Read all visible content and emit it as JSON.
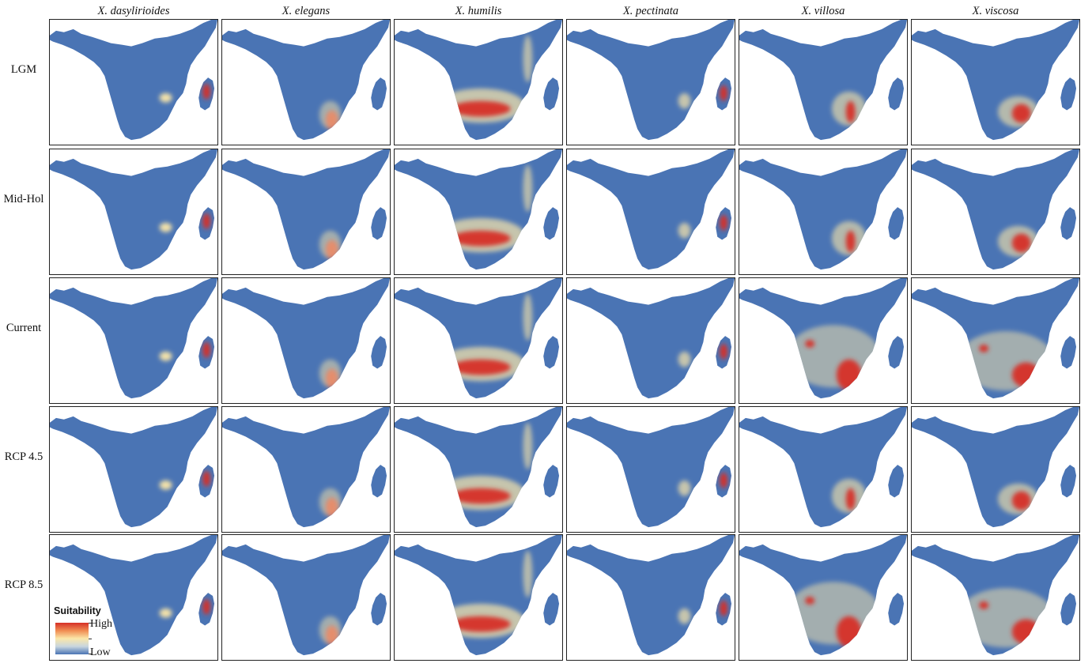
{
  "species": [
    "X. dasylirioides",
    "X. elegans",
    "X. humilis",
    "X. pectinata",
    "X. villosa",
    "X. viscosa"
  ],
  "periods": [
    "LGM",
    "Mid-Hol",
    "Current",
    "RCP 4.5",
    "RCP 8.5"
  ],
  "legend": {
    "title": "Suitability",
    "high": "High",
    "low": "Low"
  },
  "colors": {
    "ocean": "#ffffff",
    "land_low": "#4a74b4",
    "mid": "#fbe7a9",
    "high": "#d62f26"
  },
  "hotspots": {
    "X. dasylirioides": {
      "madagascar": "high",
      "south_east": "low"
    },
    "X. elegans": {
      "south_east": "high"
    },
    "X. humilis": {
      "southern_africa_band": "high",
      "east_africa": "medium"
    },
    "X. pectinata": {
      "madagascar": "high",
      "mozambique": "medium"
    },
    "X. villosa": {
      "south_east": "high",
      "current_and_rcp85": "very high"
    },
    "X. viscosa": {
      "south_east": "high",
      "current_and_rcp85": "very high"
    }
  }
}
